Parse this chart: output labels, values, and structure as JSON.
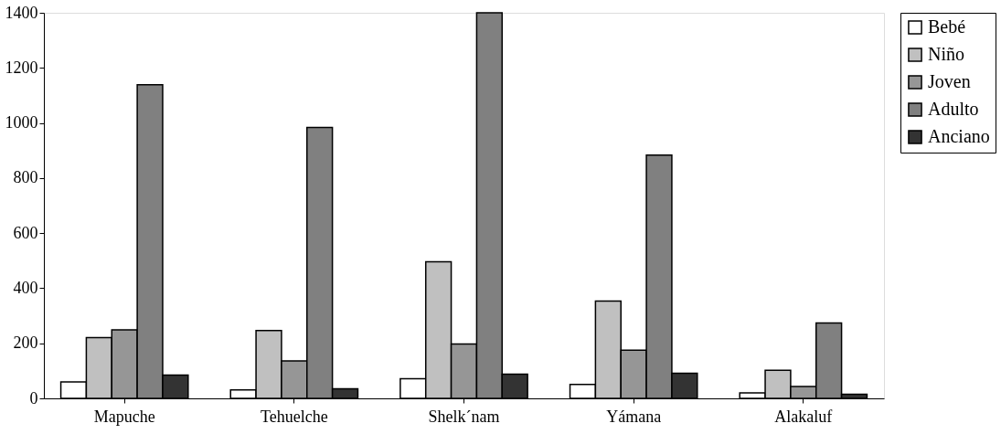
{
  "chart_data": {
    "type": "bar",
    "categories": [
      "Mapuche",
      "Tehuelche",
      "Shelk´nam",
      "Yámana",
      "Alakaluf"
    ],
    "series": [
      {
        "name": "Bebé",
        "color": "#ffffff",
        "values": [
          60,
          31,
          71,
          51,
          20
        ]
      },
      {
        "name": "Niño",
        "color": "#c0c0c0",
        "values": [
          221,
          246,
          496,
          353,
          102
        ]
      },
      {
        "name": "Joven",
        "color": "#969696",
        "values": [
          249,
          136,
          197,
          175,
          43
        ]
      },
      {
        "name": "Adulto",
        "color": "#808080",
        "values": [
          1139,
          984,
          1400,
          883,
          274
        ]
      },
      {
        "name": "Anciano",
        "color": "#333333",
        "values": [
          85,
          35,
          88,
          91,
          15
        ]
      }
    ],
    "ylim": [
      0,
      1400
    ],
    "yticks": [
      0,
      200,
      400,
      600,
      800,
      1000,
      1200,
      1400
    ],
    "grid": false,
    "legend": "top right"
  }
}
